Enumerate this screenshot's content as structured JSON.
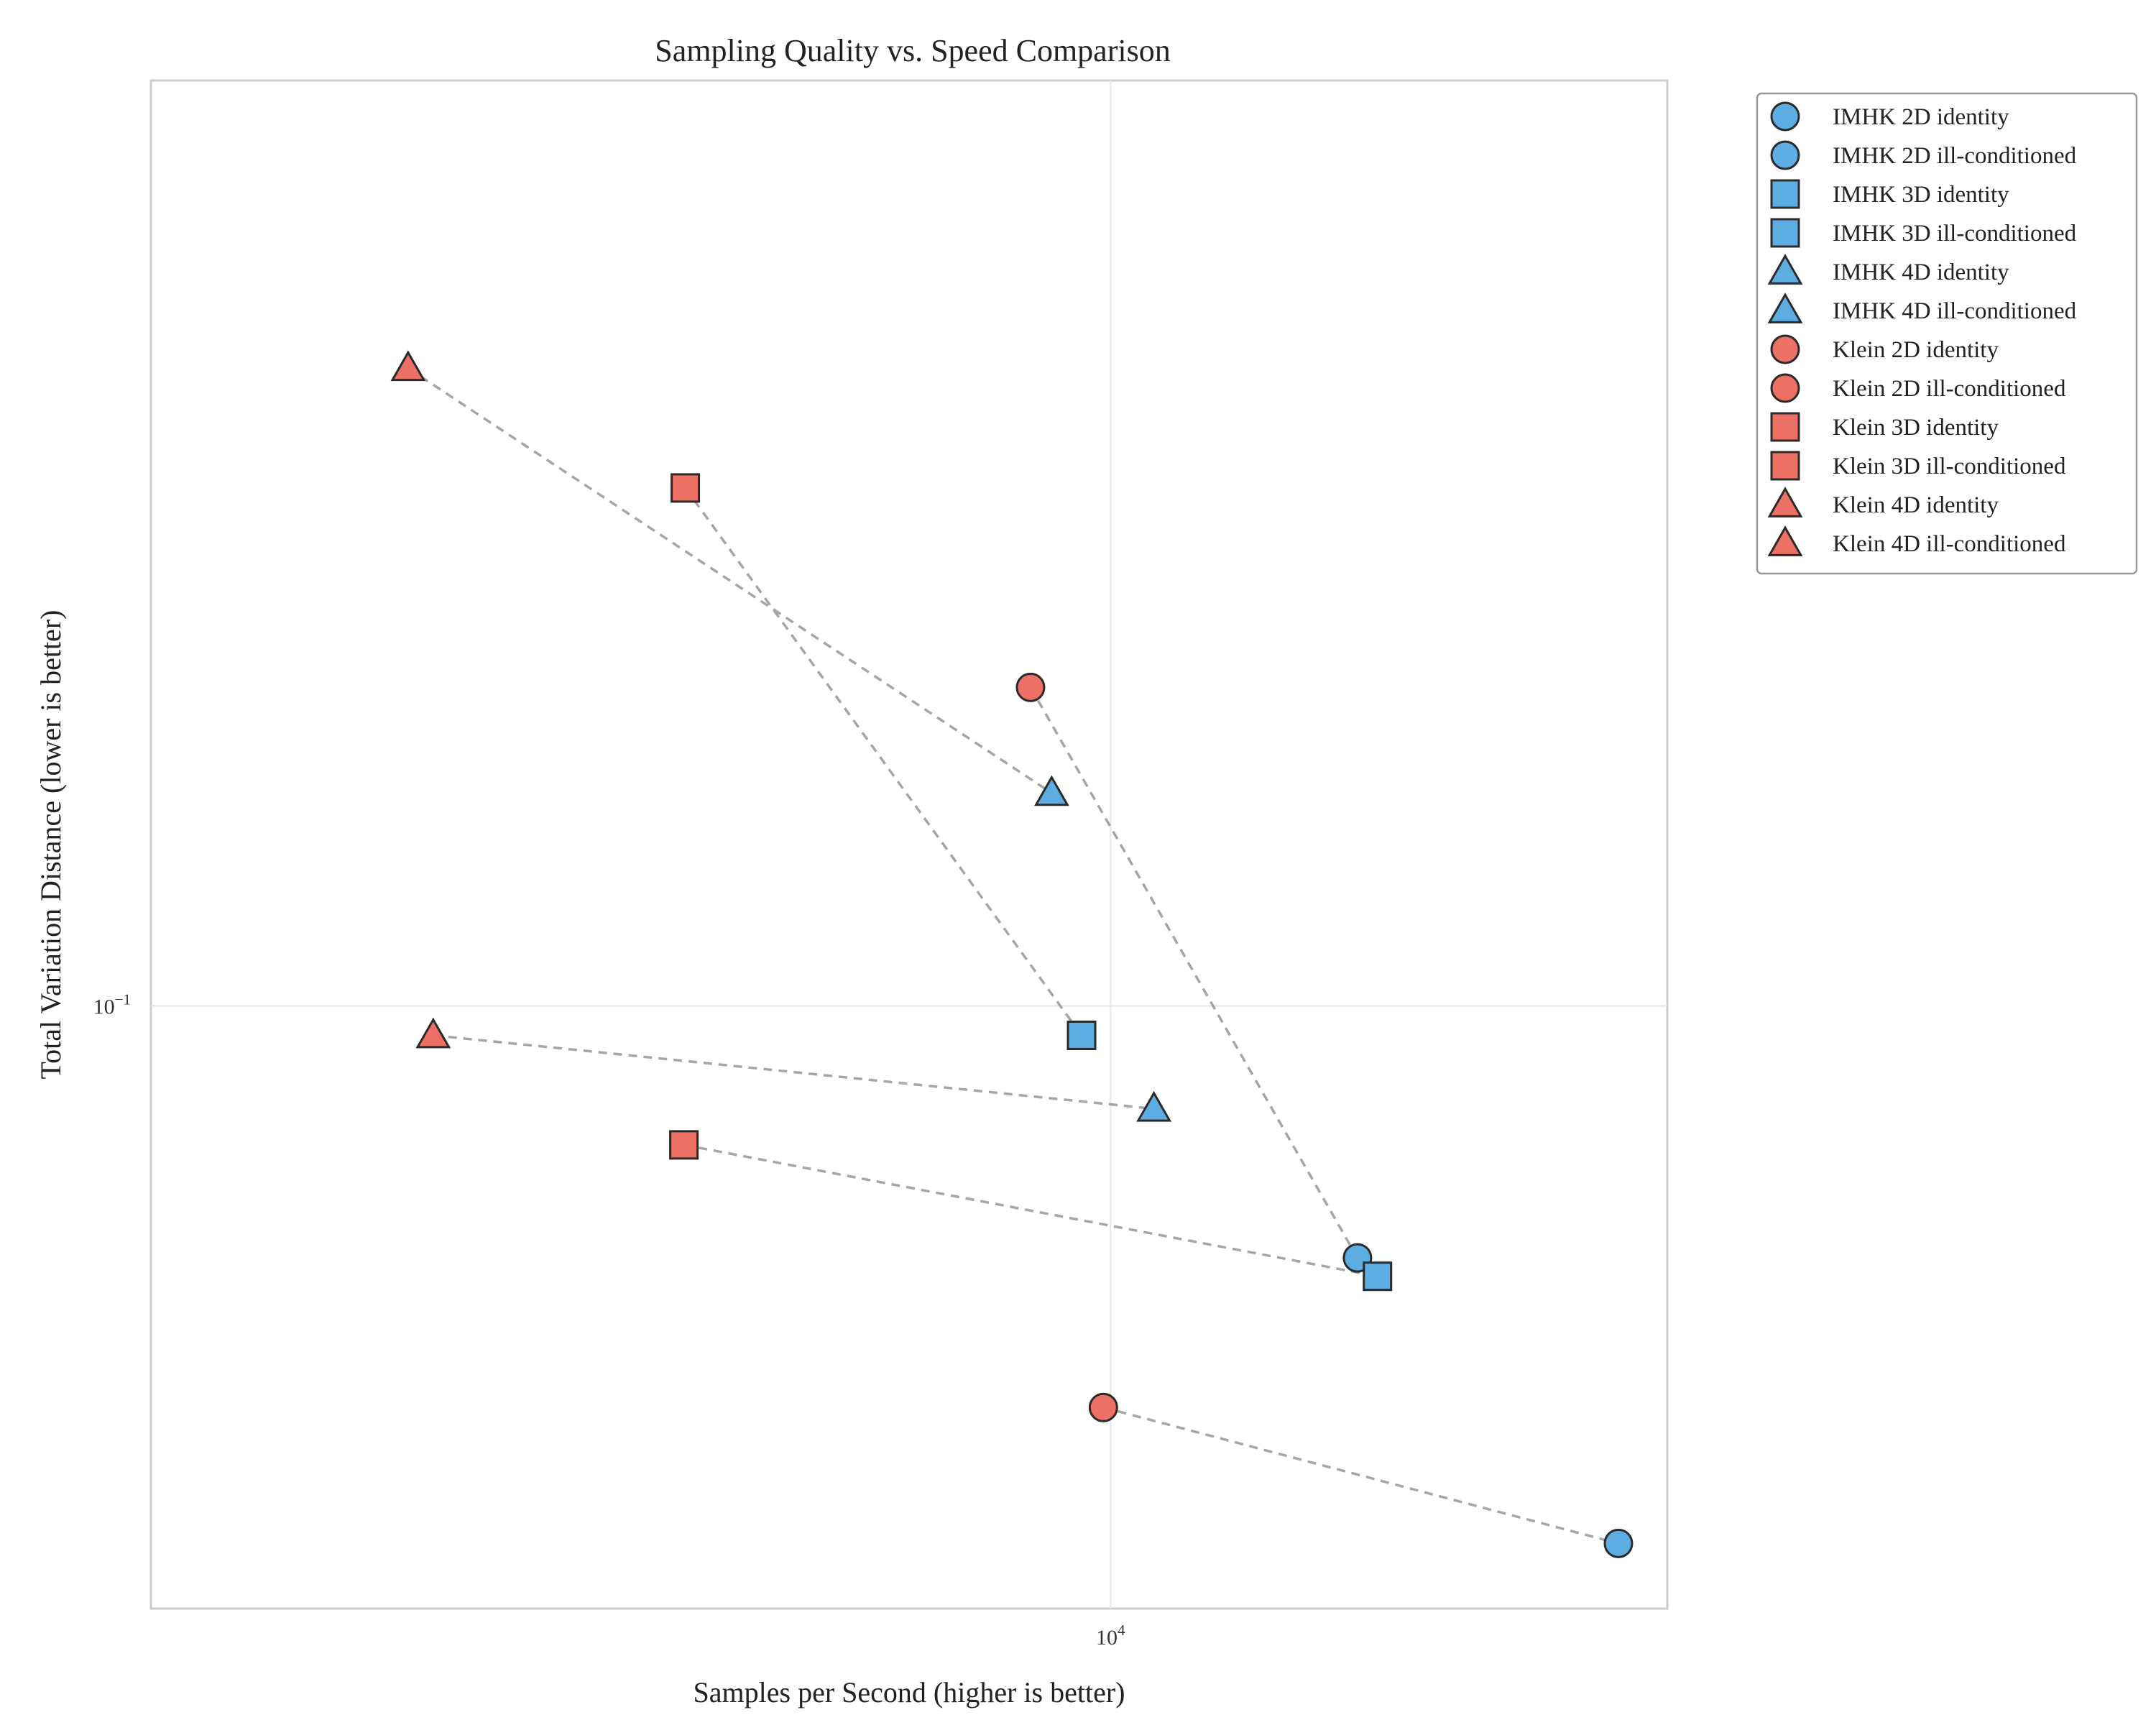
{
  "chart_data": {
    "type": "scatter",
    "title": "Sampling Quality vs. Speed Comparison",
    "xlabel": "Samples per Second (higher is better)",
    "ylabel": "Total Variation Distance (lower is better)",
    "xscale": "log",
    "yscale": "log",
    "xlim": [
      3400,
      18700
    ],
    "ylim": [
      0.0583,
      0.229
    ],
    "x_ticks": [
      {
        "base": "10",
        "exp": "4",
        "value": 10000
      }
    ],
    "y_ticks": [
      {
        "base": "10",
        "exp": "−1",
        "value": 0.1
      }
    ],
    "grid": true,
    "legend_position": "outside-top-right",
    "colors": {
      "IMHK": "#5dade2",
      "Klein": "#ec7063",
      "connector": "#a6a6a6"
    },
    "series": [
      {
        "name": "IMHK 2D identity",
        "method": "IMHK",
        "marker": "circle",
        "x": 17700,
        "y": 0.0618
      },
      {
        "name": "IMHK 2D ill-conditioned",
        "method": "IMHK",
        "marker": "circle",
        "x": 13200,
        "y": 0.0798
      },
      {
        "name": "IMHK 3D identity",
        "method": "IMHK",
        "marker": "square",
        "x": 13500,
        "y": 0.0785
      },
      {
        "name": "IMHK 3D ill-conditioned",
        "method": "IMHK",
        "marker": "square",
        "x": 9680,
        "y": 0.0974
      },
      {
        "name": "IMHK 4D identity",
        "method": "IMHK",
        "marker": "triangle",
        "x": 10500,
        "y": 0.0912
      },
      {
        "name": "IMHK 4D ill-conditioned",
        "method": "IMHK",
        "marker": "triangle",
        "x": 9360,
        "y": 0.121
      },
      {
        "name": "Klein 2D identity",
        "method": "Klein",
        "marker": "circle",
        "x": 9920,
        "y": 0.0698
      },
      {
        "name": "Klein 2D ill-conditioned",
        "method": "Klein",
        "marker": "circle",
        "x": 9140,
        "y": 0.133
      },
      {
        "name": "Klein 3D identity",
        "method": "Klein",
        "marker": "square",
        "x": 6190,
        "y": 0.0883
      },
      {
        "name": "Klein 3D ill-conditioned",
        "method": "Klein",
        "marker": "square",
        "x": 6200,
        "y": 0.159
      },
      {
        "name": "Klein 4D identity",
        "method": "Klein",
        "marker": "triangle",
        "x": 4670,
        "y": 0.0974
      },
      {
        "name": "Klein 4D ill-conditioned",
        "method": "Klein",
        "marker": "triangle",
        "x": 4540,
        "y": 0.177
      }
    ],
    "connections": [
      [
        "Klein 2D identity",
        "IMHK 2D identity"
      ],
      [
        "Klein 2D ill-conditioned",
        "IMHK 2D ill-conditioned"
      ],
      [
        "Klein 3D identity",
        "IMHK 3D identity"
      ],
      [
        "Klein 3D ill-conditioned",
        "IMHK 3D ill-conditioned"
      ],
      [
        "Klein 4D identity",
        "IMHK 4D identity"
      ],
      [
        "Klein 4D ill-conditioned",
        "IMHK 4D ill-conditioned"
      ]
    ]
  }
}
